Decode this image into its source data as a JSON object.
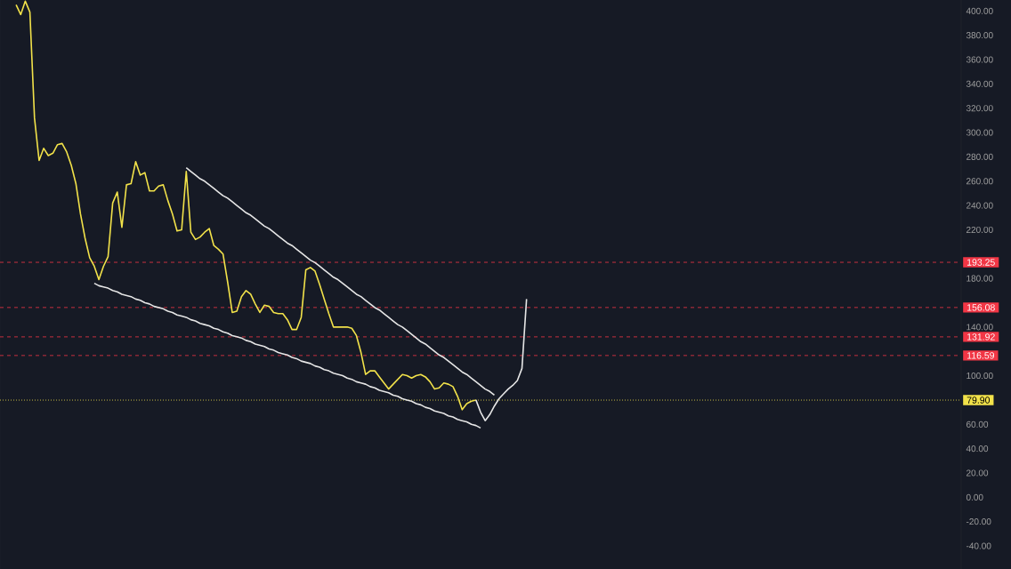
{
  "chart_data": {
    "type": "line",
    "ylim": [
      -59,
      409
    ],
    "tick_labels": "y",
    "categories": [
      null,
      null,
      null,
      null,
      null,
      null,
      null,
      null,
      null,
      null,
      null,
      null,
      null,
      null,
      null,
      null,
      null,
      null,
      null,
      null,
      null,
      null,
      null,
      null,
      null,
      null,
      null,
      null,
      null,
      null,
      null,
      null,
      null,
      null,
      null,
      null,
      null,
      null,
      null,
      null,
      null,
      null,
      null,
      null,
      null,
      null,
      null,
      null,
      null,
      null,
      null,
      null,
      null,
      null,
      null,
      null,
      null,
      null,
      null,
      null,
      null,
      null,
      null,
      null,
      null,
      null,
      null,
      null,
      null,
      null,
      null,
      null,
      null,
      null,
      null,
      null,
      null,
      null,
      null,
      null,
      null,
      null,
      null,
      null,
      null,
      null,
      null,
      null,
      null,
      null,
      null,
      null,
      null,
      null,
      null,
      null,
      null,
      null,
      null,
      null,
      null,
      null,
      null,
      null,
      null,
      null,
      null,
      null,
      null,
      null,
      null,
      null,
      null,
      null,
      null,
      null,
      null,
      null,
      null,
      null,
      null,
      null,
      null,
      null,
      null,
      null,
      null,
      null,
      null,
      null,
      null,
      null,
      null,
      null,
      null,
      null,
      null,
      null,
      null,
      null,
      null,
      null,
      null,
      null,
      null,
      null,
      null,
      null,
      null,
      null,
      null,
      null,
      null,
      null,
      null,
      null,
      null,
      null,
      null,
      null,
      null,
      null,
      null,
      null,
      null,
      null,
      null,
      null,
      null,
      null,
      null,
      null,
      null,
      null,
      null,
      null,
      null,
      null,
      null,
      null,
      null,
      null,
      null,
      null,
      null,
      null,
      null,
      null,
      null,
      null,
      null,
      null,
      null,
      null,
      null,
      null,
      null,
      null,
      null,
      null,
      null,
      null,
      null,
      null,
      null,
      null,
      null,
      null,
      null
    ],
    "yticks": [
      {
        "value": 400,
        "label": "400.00"
      },
      {
        "value": 380,
        "label": "380.00"
      },
      {
        "value": 360,
        "label": "360.00"
      },
      {
        "value": 340,
        "label": "340.00"
      },
      {
        "value": 320,
        "label": "320.00"
      },
      {
        "value": 300,
        "label": "300.00"
      },
      {
        "value": 280,
        "label": "280.00"
      },
      {
        "value": 260,
        "label": "260.00"
      },
      {
        "value": 240,
        "label": "240.00"
      },
      {
        "value": 220,
        "label": "220.00"
      },
      {
        "value": 180,
        "label": "180.00"
      },
      {
        "value": 140,
        "label": "140.00"
      },
      {
        "value": 100,
        "label": "100.00"
      },
      {
        "value": 60,
        "label": "60.00"
      },
      {
        "value": 40,
        "label": "40.00"
      },
      {
        "value": 20,
        "label": "20.00"
      },
      {
        "value": 0,
        "label": "0.00"
      },
      {
        "value": -20,
        "label": "-20.00"
      },
      {
        "value": -40,
        "label": "-40.00"
      }
    ],
    "series": [
      {
        "color": "#f2e24a",
        "values": [
          null,
          null,
          null,
          405,
          397,
          408,
          399,
          312,
          277,
          287,
          281,
          283,
          290,
          291,
          284,
          273,
          258,
          233,
          213,
          197,
          190,
          179,
          190,
          198,
          242,
          251,
          222,
          257,
          258,
          276,
          265,
          267,
          252,
          252,
          256,
          257,
          244,
          233,
          219,
          220,
          268,
          218,
          212,
          214,
          218,
          221,
          207,
          204,
          200,
          177,
          152,
          153,
          165,
          170,
          167,
          159,
          152,
          158,
          157,
          152,
          151,
          151,
          146,
          138,
          138,
          148,
          187,
          189,
          186,
          175,
          163,
          151,
          140,
          140,
          140,
          140,
          139,
          133,
          119,
          101,
          104,
          104,
          99,
          94,
          89,
          93,
          97,
          101,
          100,
          98,
          100,
          101,
          99,
          95,
          89,
          90,
          94,
          93,
          91,
          83,
          72,
          77,
          79,
          80,
          null,
          null,
          null,
          null,
          null,
          null,
          null,
          null,
          null,
          null,
          null,
          null,
          null,
          null,
          null,
          null,
          null,
          null,
          null,
          null,
          null,
          null,
          null,
          null,
          null,
          null,
          null,
          null,
          null,
          null,
          null,
          null,
          null,
          null,
          null,
          null,
          null,
          null,
          null,
          null,
          null,
          null,
          null,
          null,
          null,
          null,
          null,
          null,
          null,
          null,
          null,
          null,
          null,
          null,
          null,
          null,
          null,
          null,
          null,
          null,
          null,
          null,
          null,
          null,
          null,
          null,
          null,
          null,
          null,
          null,
          null,
          null,
          null,
          null,
          null,
          null,
          null,
          null,
          null,
          null,
          null,
          null,
          null,
          null,
          null,
          null,
          null,
          null,
          null,
          null,
          null,
          null,
          null,
          null,
          null,
          null,
          null,
          null,
          null,
          null,
          null,
          null,
          null,
          null,
          null
        ]
      },
      {
        "color": "#e6e6e6",
        "values": [
          null,
          null,
          null,
          null,
          null,
          null,
          null,
          null,
          null,
          null,
          null,
          null,
          null,
          null,
          null,
          null,
          null,
          null,
          null,
          null,
          null,
          null,
          null,
          null,
          null,
          null,
          null,
          null,
          null,
          null,
          null,
          null,
          null,
          null,
          null,
          null,
          null,
          null,
          null,
          null,
          271,
          268,
          265,
          262,
          260,
          257,
          254,
          251,
          248,
          246,
          243,
          240,
          237,
          234,
          232,
          229,
          226,
          223,
          221,
          218,
          215,
          212,
          209,
          207,
          204,
          201,
          198,
          195,
          193,
          190,
          187,
          184,
          181,
          179,
          176,
          173,
          170,
          167,
          165,
          162,
          159,
          156,
          154,
          151,
          148,
          145,
          142,
          140,
          137,
          134,
          131,
          128,
          126,
          123,
          120,
          117,
          115,
          112,
          109,
          106,
          103,
          101,
          98,
          95,
          92,
          89,
          87,
          84,
          null,
          null,
          null,
          null,
          null,
          null,
          null,
          null,
          null,
          null,
          null,
          null,
          null,
          null,
          null,
          null,
          null,
          null,
          null,
          null,
          null,
          null,
          null,
          null,
          null,
          null,
          null,
          null,
          null,
          null,
          null,
          null,
          null,
          null,
          null,
          null,
          null,
          null,
          null,
          null,
          null,
          null,
          null,
          null,
          null,
          null,
          null,
          null,
          null,
          null,
          null,
          null,
          null,
          null,
          null,
          null,
          null,
          null,
          null,
          null,
          null,
          null,
          null,
          null,
          null,
          null,
          null,
          null,
          null,
          null,
          null,
          null,
          null,
          null,
          null,
          null,
          null,
          null,
          null,
          null,
          null,
          null,
          null,
          null,
          null,
          null,
          null,
          null,
          null,
          null,
          null,
          null,
          null,
          null,
          null,
          null,
          null,
          null,
          null,
          null,
          null
        ]
      },
      {
        "color": "#e6e6e6",
        "values": [
          null,
          null,
          null,
          null,
          null,
          null,
          null,
          null,
          null,
          null,
          null,
          null,
          null,
          null,
          null,
          null,
          null,
          null,
          null,
          null,
          176,
          174,
          173,
          172,
          170,
          169,
          167,
          166,
          165,
          163,
          162,
          160,
          159,
          157,
          156,
          155,
          153,
          152,
          150,
          149,
          148,
          146,
          145,
          143,
          142,
          141,
          139,
          138,
          136,
          135,
          133,
          132,
          131,
          129,
          128,
          126,
          125,
          124,
          122,
          121,
          119,
          118,
          117,
          115,
          114,
          112,
          111,
          110,
          108,
          107,
          105,
          104,
          102,
          101,
          100,
          98,
          97,
          95,
          94,
          93,
          91,
          90,
          88,
          87,
          86,
          84,
          83,
          81,
          80,
          79,
          77,
          76,
          74,
          73,
          71,
          70,
          69,
          67,
          66,
          64,
          63,
          62,
          60,
          59,
          57,
          null,
          null,
          null,
          null,
          null,
          null,
          null,
          null,
          null,
          null,
          null,
          null,
          null,
          null,
          null,
          null,
          null,
          null,
          null,
          null,
          null,
          null,
          null,
          null,
          null,
          null,
          null,
          null,
          null,
          null,
          null,
          null,
          null,
          null,
          null,
          null,
          null,
          null,
          null,
          null,
          null,
          null,
          null,
          null,
          null,
          null,
          null,
          null,
          null,
          null,
          null,
          null,
          null,
          null,
          null,
          null,
          null,
          null,
          null,
          null,
          null,
          null,
          null,
          null,
          null,
          null,
          null,
          null,
          null,
          null,
          null,
          null,
          null,
          null,
          null,
          null,
          null,
          null,
          null,
          null,
          null,
          null,
          null,
          null,
          null,
          null,
          null,
          null,
          null,
          null,
          null,
          null,
          null,
          null,
          null,
          null,
          null,
          null,
          null,
          null,
          null,
          null,
          null,
          null
        ]
      },
      {
        "color": "#e6e6e6",
        "values": [
          null,
          null,
          null,
          null,
          null,
          null,
          null,
          null,
          null,
          null,
          null,
          null,
          null,
          null,
          null,
          null,
          null,
          null,
          null,
          null,
          null,
          null,
          null,
          null,
          null,
          null,
          null,
          null,
          null,
          null,
          null,
          null,
          null,
          null,
          null,
          null,
          null,
          null,
          null,
          null,
          null,
          null,
          null,
          null,
          null,
          null,
          null,
          null,
          null,
          null,
          null,
          null,
          null,
          null,
          null,
          null,
          null,
          null,
          null,
          null,
          null,
          null,
          null,
          null,
          null,
          null,
          null,
          null,
          null,
          null,
          null,
          null,
          null,
          null,
          null,
          null,
          null,
          null,
          null,
          null,
          null,
          null,
          null,
          null,
          null,
          null,
          null,
          null,
          null,
          null,
          null,
          null,
          null,
          null,
          null,
          null,
          null,
          null,
          null,
          null,
          null,
          null,
          null,
          80,
          70,
          63,
          68,
          75,
          81,
          85,
          89,
          92,
          96,
          106,
          163,
          null,
          null,
          null,
          null,
          null,
          null,
          null,
          null,
          null,
          null,
          null,
          null,
          null,
          null,
          null,
          null,
          null,
          null,
          null,
          null,
          null,
          null,
          null,
          null,
          null,
          null,
          null,
          null,
          null,
          null,
          null,
          null,
          null,
          null,
          null,
          null,
          null,
          null,
          null,
          null,
          null,
          null,
          null,
          null,
          null,
          null,
          null,
          null,
          null,
          null,
          null,
          null,
          null,
          null,
          null,
          null,
          null,
          null,
          null,
          null,
          null,
          null,
          null,
          null,
          null,
          null,
          null,
          null,
          null,
          null,
          null,
          null,
          null,
          null,
          null,
          null,
          null,
          null,
          null,
          null,
          null,
          null,
          null,
          null,
          null,
          null,
          null,
          null,
          null,
          null,
          null,
          null,
          null,
          null
        ]
      }
    ],
    "ref_lines": [
      {
        "axis": "y",
        "value": 193.25,
        "label": "193.25",
        "color": "#f23645",
        "line_style": "dashed"
      },
      {
        "axis": "y",
        "value": 156.08,
        "label": "156.08",
        "color": "#f23645",
        "line_style": "dashed"
      },
      {
        "axis": "y",
        "value": 131.92,
        "label": "131.92",
        "color": "#f23645",
        "line_style": "dashed"
      },
      {
        "axis": "y",
        "value": 116.59,
        "label": "116.59",
        "color": "#f23645",
        "line_style": "dashed"
      },
      {
        "axis": "y",
        "value": 79.9,
        "label": "79.90",
        "color": "#f2e24a",
        "line_style": "dotted"
      }
    ]
  }
}
